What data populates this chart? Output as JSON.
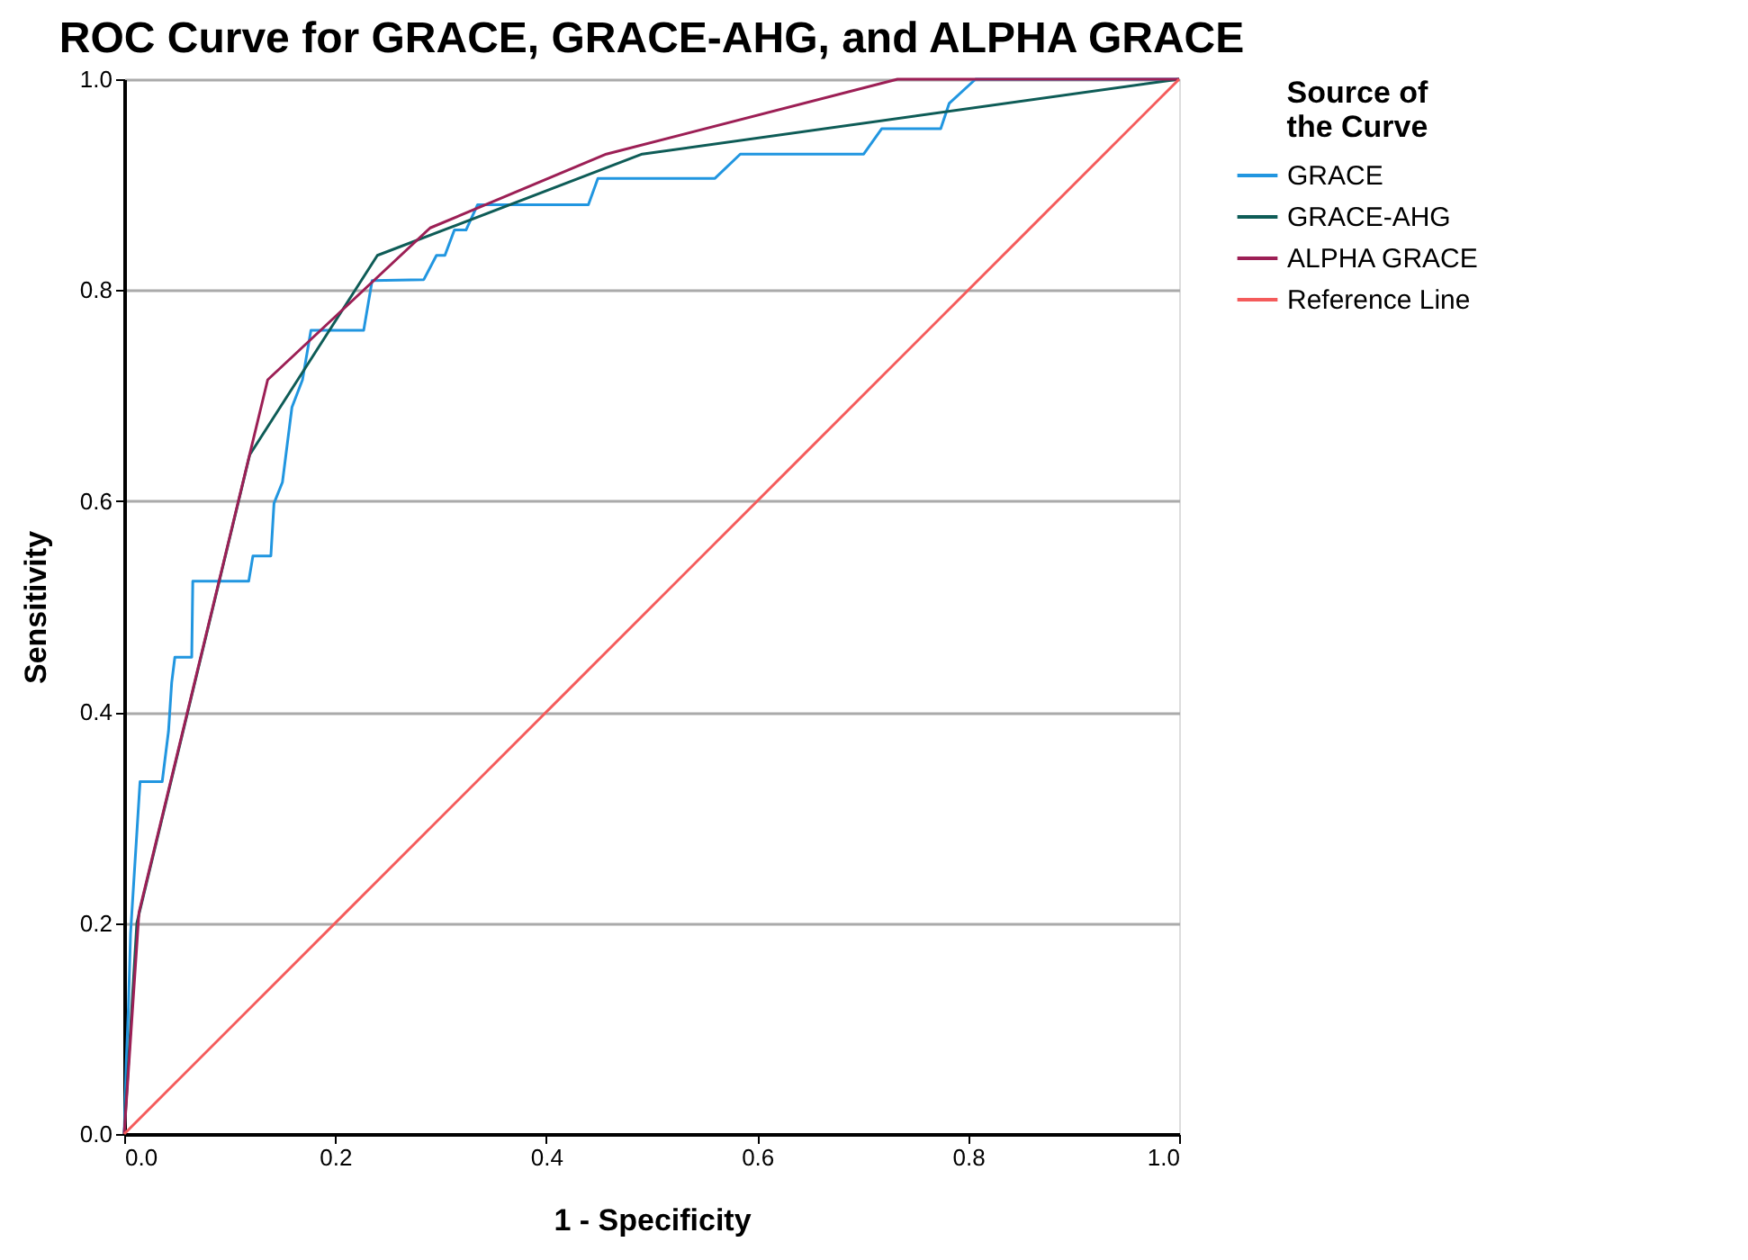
{
  "chart_data": {
    "type": "line",
    "title": "ROC Curve for GRACE, GRACE-AHG, and ALPHA GRACE",
    "xlabel": "1 - Specificity",
    "ylabel": "Sensitivity",
    "legend_title": "Source of the Curve",
    "legend": "top right",
    "grid": "y",
    "marker": "none",
    "line_style": "solid",
    "xlim": [
      0,
      1
    ],
    "ylim": [
      0,
      1
    ],
    "xticks": [
      {
        "value": 0,
        "label": "0.0"
      },
      0.2,
      0.4,
      0.6,
      0.8,
      {
        "value": 1,
        "label": "1.0"
      }
    ],
    "yticks": [
      {
        "value": 0,
        "label": "0.0"
      },
      0.2,
      0.4,
      0.6,
      0.8,
      {
        "value": 1,
        "label": "1.0"
      }
    ],
    "series": [
      {
        "name": "GRACE",
        "color": "#2196e0",
        "x": [
          0,
          0.002,
          0.004,
          0.006,
          0.012,
          0.015,
          0.036,
          0.042,
          0.045,
          0.048,
          0.064,
          0.065,
          0.118,
          0.122,
          0.139,
          0.142,
          0.15,
          0.159,
          0.169,
          0.177,
          0.227,
          0.235,
          0.284,
          0.296,
          0.304,
          0.313,
          0.324,
          0.335,
          0.44,
          0.449,
          0.56,
          0.584,
          0.701,
          0.718,
          0.774,
          0.782,
          0.807,
          1
        ],
        "values": [
          0,
          0.07,
          0.12,
          0.19,
          0.286,
          0.334,
          0.334,
          0.382,
          0.428,
          0.452,
          0.452,
          0.524,
          0.524,
          0.548,
          0.548,
          0.598,
          0.618,
          0.689,
          0.715,
          0.762,
          0.762,
          0.809,
          0.81,
          0.833,
          0.833,
          0.857,
          0.857,
          0.881,
          0.881,
          0.906,
          0.906,
          0.929,
          0.929,
          0.953,
          0.953,
          0.977,
          1,
          1
        ]
      },
      {
        "name": "GRACE-AHG",
        "color": "#0e5c57",
        "x": [
          0,
          0.012,
          0.119,
          0.24,
          0.491,
          1
        ],
        "values": [
          0,
          0.2,
          0.644,
          0.833,
          0.929,
          1
        ]
      },
      {
        "name": "ALPHA GRACE",
        "color": "#9c1f55",
        "x": [
          0,
          0.014,
          0.136,
          0.29,
          0.457,
          0.733,
          1
        ],
        "values": [
          0,
          0.21,
          0.715,
          0.859,
          0.929,
          1,
          1
        ]
      },
      {
        "name": "Reference Line",
        "color": "#f45b5b",
        "x": [
          0,
          1
        ],
        "values": [
          0,
          1
        ]
      }
    ]
  }
}
